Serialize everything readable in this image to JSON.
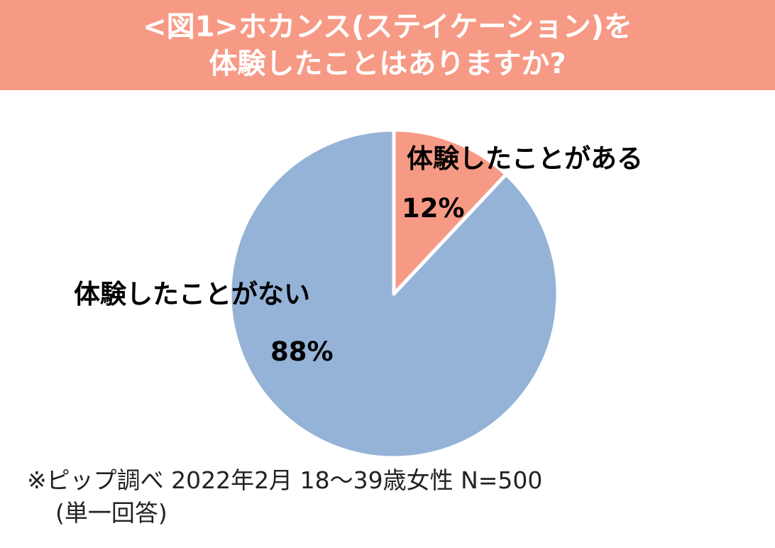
{
  "title": {
    "line1": "<図1>ホカンス(ステイケーション)を",
    "line2": "体験したことはありますか?"
  },
  "chart_data": {
    "type": "pie",
    "slices": [
      {
        "label": "体験したことがある",
        "value": 12,
        "value_label": "12%",
        "color": "#f79a85"
      },
      {
        "label": "体験したことがない",
        "value": 88,
        "value_label": "88%",
        "color": "#95b3d7"
      }
    ]
  },
  "footnote": {
    "line1": "※ピップ調べ 2022年2月 18〜39歳女性 N=500",
    "line2": "(単一回答)"
  }
}
